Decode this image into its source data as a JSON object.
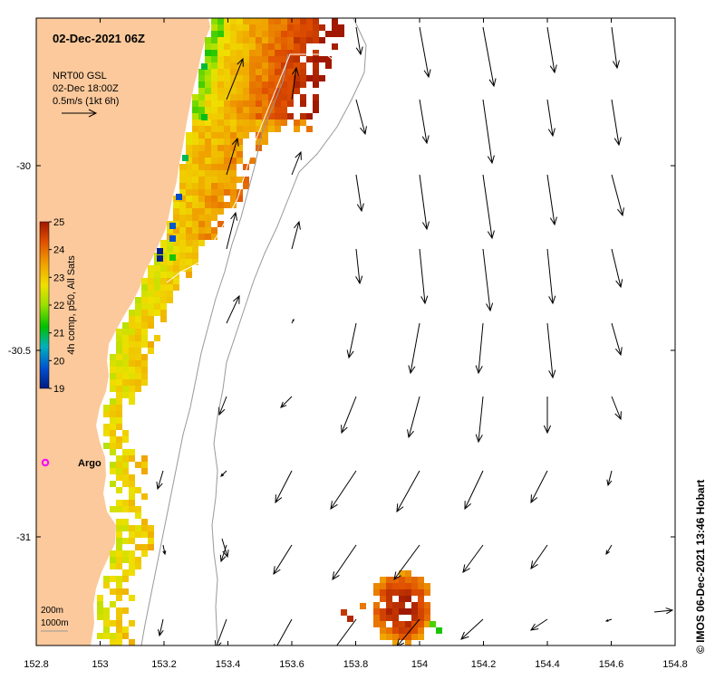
{
  "title": "02-Dec-2021 06Z",
  "current_info": {
    "line1": "NRT00 GSL",
    "line2": "02-Dec 18:00Z",
    "line3": "0.5m/s (1kt 6h)"
  },
  "colorbar": {
    "label": "4h comp, p50, All Sats",
    "ticks": [
      "19",
      "20",
      "21",
      "22",
      "23",
      "24",
      "25"
    ]
  },
  "map_extent": {
    "lon": [
      152.8,
      154.8
    ],
    "lat": [
      -31.3,
      -29.6
    ]
  },
  "x_ticks": [
    "152.8",
    "153",
    "153.2",
    "153.4",
    "153.6",
    "153.8",
    "154",
    "154.2",
    "154.4",
    "154.6",
    "154.8"
  ],
  "y_ticks": [
    "-30",
    "-30.5",
    "-31"
  ],
  "station": {
    "label": "Argo"
  },
  "depth_legend": {
    "line1": "200m",
    "line2": "1000m"
  },
  "credit": "© IMOS 06-Dec-2021 13:46 Hobart",
  "colors": {
    "land": "#fbc99b",
    "sst_warm": "#c02a00",
    "sst_mid": "#f0c000",
    "sst_cool": "#00b000",
    "sst_cold": "#001f9a",
    "argo": "#ff00ff"
  }
}
